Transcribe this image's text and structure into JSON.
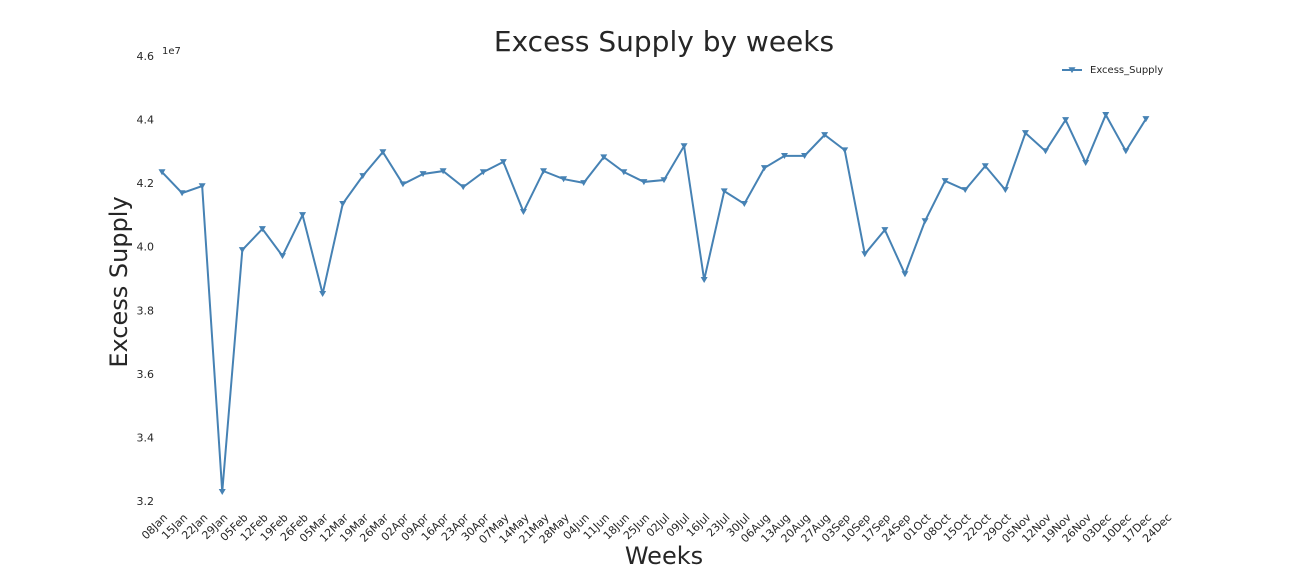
{
  "chart_data": {
    "type": "line",
    "title": "Excess Supply by weeks",
    "x_label": "Weeks",
    "y_label": "Excess Supply",
    "offset_label": "1e7",
    "categories": [
      "08Jan",
      "15Jan",
      "22Jan",
      "29Jan",
      "05Feb",
      "12Feb",
      "19Feb",
      "26Feb",
      "05Mar",
      "12Mar",
      "19Mar",
      "26Mar",
      "02Apr",
      "09Apr",
      "16Apr",
      "23Apr",
      "30Apr",
      "07May",
      "14May",
      "21May",
      "28May",
      "04Jun",
      "11Jun",
      "18Jun",
      "25Jun",
      "02Jul",
      "09Jul",
      "16Jul",
      "23Jul",
      "30Jul",
      "06Aug",
      "13Aug",
      "20Aug",
      "27Aug",
      "03Sep",
      "10Sep",
      "17Sep",
      "24Sep",
      "01Oct",
      "08Oct",
      "15Oct",
      "22Oct",
      "29Oct",
      "05Nov",
      "12Nov",
      "19Nov",
      "26Nov",
      "03Dec",
      "10Dec",
      "17Dec",
      "24Dec"
    ],
    "series": [
      {
        "name": "Excess_Supply",
        "color": "#4682b4",
        "marker": "triangle-down",
        "values": [
          42380000,
          41720000,
          41940000,
          32320000,
          39930000,
          40590000,
          39740000,
          41030000,
          38550000,
          41380000,
          42260000,
          43010000,
          42000000,
          42320000,
          42410000,
          41910000,
          42380000,
          42700000,
          41130000,
          42410000,
          42160000,
          42040000,
          42850000,
          42380000,
          42070000,
          42130000,
          43200000,
          38990000,
          41780000,
          41380000,
          42510000,
          42890000,
          42890000,
          43550000,
          43070000,
          39800000,
          40560000,
          39170000,
          40840000,
          42100000,
          41820000,
          42570000,
          41820000,
          43610000,
          43040000,
          44020000,
          42670000,
          44180000,
          43040000,
          44050000,
          null
        ]
      }
    ],
    "ylim": [
      32000000,
      46000000
    ],
    "yticks": [
      {
        "value": 32000000,
        "label": "3.2"
      },
      {
        "value": 34000000,
        "label": "3.4"
      },
      {
        "value": 36000000,
        "label": "3.6"
      },
      {
        "value": 38000000,
        "label": "3.8"
      },
      {
        "value": 40000000,
        "label": "4.0"
      },
      {
        "value": 42000000,
        "label": "4.2"
      },
      {
        "value": 44000000,
        "label": "4.4"
      },
      {
        "value": 46000000,
        "label": "4.6"
      }
    ],
    "grid": false,
    "legend": "upper right"
  }
}
